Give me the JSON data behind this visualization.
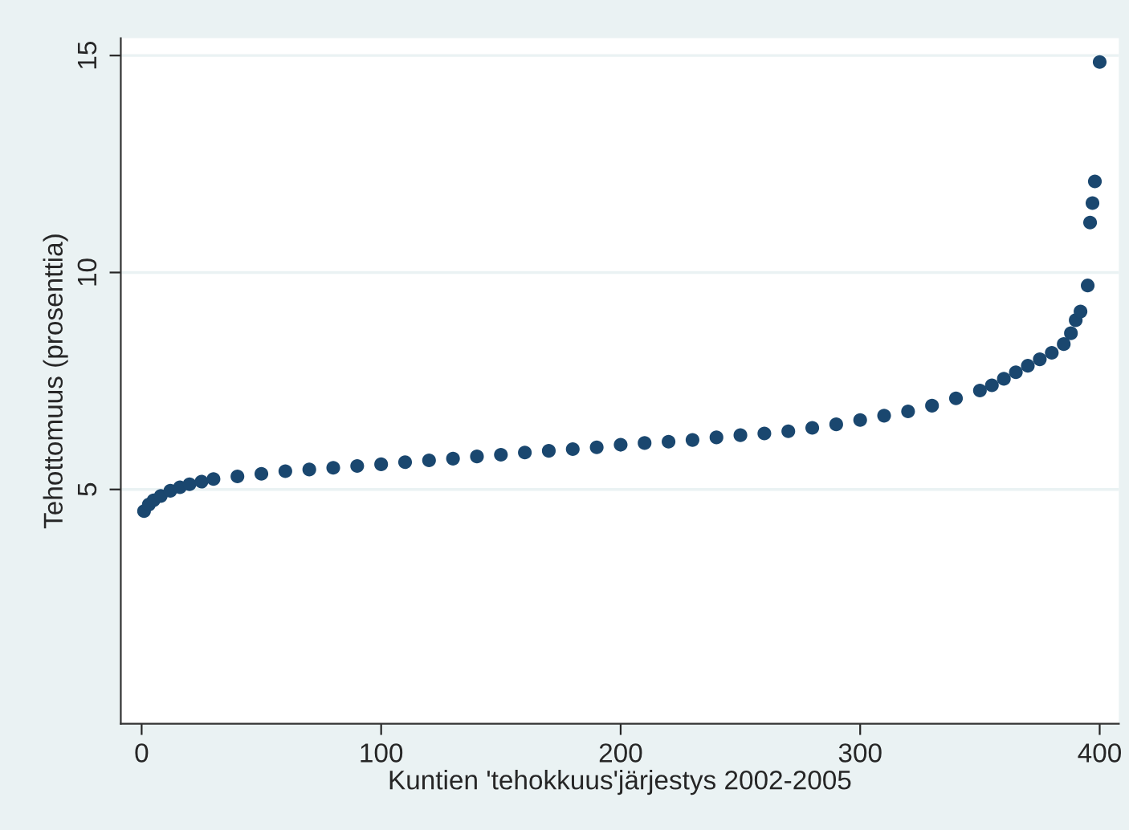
{
  "chart_data": {
    "type": "scatter",
    "xlabel": "Kuntien 'tehokkuus'järjestys 2002-2005",
    "ylabel": "Tehottomuus (prosenttia)",
    "x": [
      1,
      3,
      5,
      8,
      12,
      16,
      20,
      25,
      30,
      40,
      50,
      60,
      70,
      80,
      90,
      100,
      110,
      120,
      130,
      140,
      150,
      160,
      170,
      180,
      190,
      200,
      210,
      220,
      230,
      240,
      250,
      260,
      270,
      280,
      290,
      300,
      310,
      320,
      330,
      340,
      350,
      355,
      360,
      365,
      370,
      375,
      380,
      385,
      388,
      390,
      392,
      395,
      396,
      397,
      398,
      400
    ],
    "series": [
      {
        "color": "#1a476f",
        "values": [
          4.5,
          4.65,
          4.75,
          4.85,
          4.97,
          5.05,
          5.12,
          5.18,
          5.24,
          5.3,
          5.36,
          5.42,
          5.46,
          5.5,
          5.54,
          5.58,
          5.63,
          5.67,
          5.71,
          5.76,
          5.8,
          5.85,
          5.89,
          5.93,
          5.97,
          6.03,
          6.07,
          6.1,
          6.14,
          6.2,
          6.25,
          6.29,
          6.34,
          6.42,
          6.5,
          6.6,
          6.7,
          6.8,
          6.93,
          7.1,
          7.28,
          7.4,
          7.55,
          7.7,
          7.85,
          8.0,
          8.15,
          8.35,
          8.6,
          8.9,
          9.1,
          9.7,
          11.15,
          11.6,
          12.1,
          14.85
        ]
      }
    ],
    "xlim": [
      -8.7,
      408
    ],
    "ylim": [
      -0.4,
      15.4
    ],
    "xticks": [
      0,
      100,
      200,
      300,
      400
    ],
    "yticks": [
      5,
      10,
      15
    ],
    "grid": "y",
    "marker": "circle"
  }
}
